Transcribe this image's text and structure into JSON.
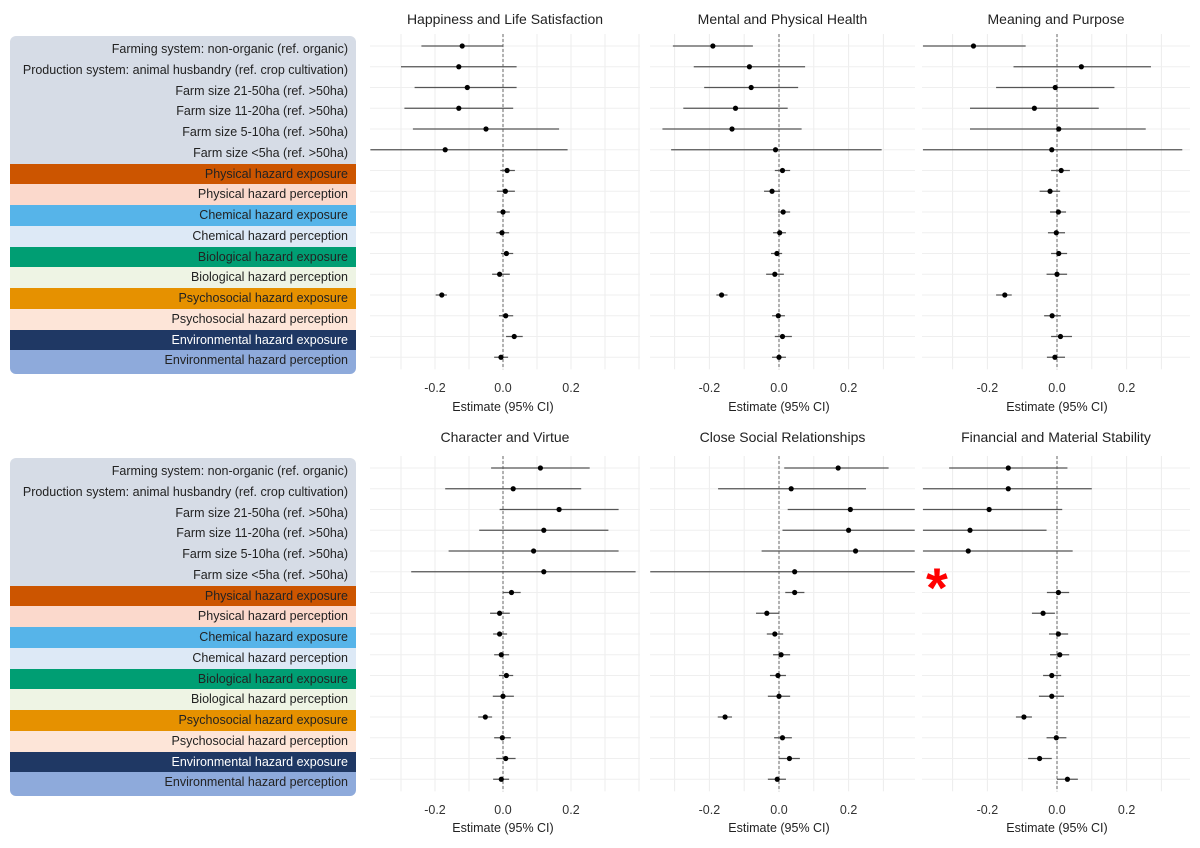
{
  "chart_data": {
    "type": "forest",
    "xlabel": "Estimate (95% CI)",
    "xticks": [
      -0.2,
      0.0,
      0.2
    ],
    "xtick_labels": [
      "-0.2",
      "0.0",
      "0.2"
    ],
    "reference_line": 0.0,
    "grid": true,
    "rows": [
      {
        "label": "Farming system: non-organic (ref. organic)",
        "color": "#d6dce6"
      },
      {
        "label": "Production system: animal husbandry (ref. crop cultivation)",
        "color": "#d6dce6"
      },
      {
        "label": "Farm size 21-50ha (ref. >50ha)",
        "color": "#d6dce6"
      },
      {
        "label": "Farm size 11-20ha (ref. >50ha)",
        "color": "#d6dce6"
      },
      {
        "label": "Farm size 5-10ha (ref. >50ha)",
        "color": "#d6dce6"
      },
      {
        "label": "Farm size <5ha (ref. >50ha)",
        "color": "#d6dce6"
      },
      {
        "label": "Physical hazard exposure",
        "color": "#cc5500"
      },
      {
        "label": "Physical hazard perception",
        "color": "#fbd9cc"
      },
      {
        "label": "Chemical hazard exposure",
        "color": "#56b4e9"
      },
      {
        "label": "Chemical hazard perception",
        "color": "#dde9f6"
      },
      {
        "label": "Biological hazard exposure",
        "color": "#009e73"
      },
      {
        "label": "Biological hazard perception",
        "color": "#eef4e4"
      },
      {
        "label": "Psychosocial hazard exposure",
        "color": "#e69100"
      },
      {
        "label": "Psychosocial hazard perception",
        "color": "#fde5d8"
      },
      {
        "label": "Environmental hazard exposure",
        "color": "#1f3864"
      },
      {
        "label": "Environmental hazard perception",
        "color": "#8eaadb"
      }
    ],
    "panels": [
      {
        "title": "Happiness and Life Satisfaction",
        "estimates": [
          -0.12,
          -0.13,
          -0.105,
          -0.13,
          -0.05,
          -0.17,
          0.012,
          0.007,
          0.0,
          -0.003,
          0.01,
          -0.01,
          -0.18,
          0.008,
          0.033,
          -0.006
        ],
        "ci_low": [
          -0.24,
          -0.3,
          -0.26,
          -0.29,
          -0.265,
          -0.39,
          -0.008,
          -0.018,
          -0.018,
          -0.02,
          -0.006,
          -0.032,
          -0.198,
          -0.012,
          0.009,
          -0.026
        ],
        "ci_high": [
          0.0,
          0.04,
          0.04,
          0.03,
          0.165,
          0.19,
          0.035,
          0.035,
          0.02,
          0.018,
          0.03,
          0.02,
          -0.165,
          0.03,
          0.058,
          0.015
        ]
      },
      {
        "title": "Mental and Physical Health",
        "estimates": [
          -0.19,
          -0.085,
          -0.08,
          -0.125,
          -0.135,
          -0.01,
          0.01,
          -0.02,
          0.012,
          0.002,
          -0.006,
          -0.012,
          -0.165,
          -0.002,
          0.01,
          0.0
        ],
        "ci_low": [
          -0.305,
          -0.245,
          -0.215,
          -0.275,
          -0.335,
          -0.31,
          -0.012,
          -0.043,
          -0.003,
          -0.017,
          -0.023,
          -0.037,
          -0.18,
          -0.02,
          -0.012,
          -0.02
        ],
        "ci_high": [
          -0.075,
          0.075,
          0.055,
          0.025,
          0.065,
          0.295,
          0.032,
          0.003,
          0.032,
          0.02,
          0.009,
          0.014,
          -0.148,
          0.017,
          0.037,
          0.02
        ]
      },
      {
        "title": "Meaning and Purpose",
        "estimates": [
          -0.24,
          0.07,
          -0.005,
          -0.065,
          0.005,
          -0.015,
          0.012,
          -0.02,
          0.004,
          -0.002,
          0.005,
          0.0,
          -0.15,
          -0.014,
          0.01,
          -0.006
        ],
        "ci_low": [
          -0.385,
          -0.125,
          -0.175,
          -0.25,
          -0.25,
          -0.385,
          -0.017,
          -0.05,
          -0.02,
          -0.026,
          -0.017,
          -0.03,
          -0.175,
          -0.037,
          -0.017,
          -0.029
        ],
        "ci_high": [
          -0.09,
          0.27,
          0.165,
          0.12,
          0.255,
          0.36,
          0.037,
          0.009,
          0.026,
          0.023,
          0.029,
          0.029,
          -0.13,
          0.011,
          0.043,
          0.023
        ]
      },
      {
        "title": "Character and Virtue",
        "estimates": [
          0.11,
          0.03,
          0.165,
          0.12,
          0.09,
          0.12,
          0.025,
          -0.01,
          -0.01,
          -0.005,
          0.01,
          0.0,
          -0.052,
          -0.002,
          0.008,
          -0.005
        ],
        "ci_low": [
          -0.035,
          -0.17,
          -0.01,
          -0.07,
          -0.16,
          -0.27,
          0.0,
          -0.038,
          -0.029,
          -0.026,
          -0.012,
          -0.03,
          -0.073,
          -0.026,
          -0.02,
          -0.029
        ],
        "ci_high": [
          0.255,
          0.23,
          0.34,
          0.31,
          0.34,
          0.39,
          0.052,
          0.02,
          0.012,
          0.018,
          0.03,
          0.032,
          -0.032,
          0.023,
          0.037,
          0.018
        ]
      },
      {
        "title": "Close Social Relationships",
        "estimates": [
          0.17,
          0.035,
          0.205,
          0.2,
          0.22,
          0.045,
          0.045,
          -0.035,
          -0.012,
          0.006,
          -0.003,
          0.0,
          -0.155,
          0.01,
          0.03,
          -0.005
        ],
        "ci_low": [
          0.015,
          -0.175,
          0.025,
          0.01,
          -0.05,
          -0.37,
          0.018,
          -0.066,
          -0.035,
          -0.017,
          -0.026,
          -0.032,
          -0.176,
          -0.014,
          0.0,
          -0.032
        ],
        "ci_high": [
          0.315,
          0.25,
          0.39,
          0.39,
          0.39,
          0.39,
          0.073,
          0.0,
          0.012,
          0.032,
          0.02,
          0.032,
          -0.135,
          0.037,
          0.06,
          0.02
        ]
      },
      {
        "title": "Financial and Material Stability",
        "estimates": [
          -0.14,
          -0.14,
          -0.195,
          -0.25,
          -0.255,
          null,
          0.004,
          -0.04,
          0.004,
          0.008,
          -0.015,
          -0.015,
          -0.095,
          -0.002,
          -0.05,
          0.03
        ],
        "ci_low": [
          -0.31,
          -0.385,
          -0.385,
          -0.385,
          -0.385,
          null,
          -0.029,
          -0.072,
          -0.023,
          -0.02,
          -0.04,
          -0.052,
          -0.118,
          -0.03,
          -0.083,
          0.0
        ],
        "ci_high": [
          0.03,
          0.1,
          0.015,
          -0.03,
          0.045,
          null,
          0.035,
          -0.006,
          0.032,
          0.035,
          0.012,
          0.02,
          -0.072,
          0.027,
          -0.015,
          0.06
        ],
        "annotation": "*"
      }
    ]
  }
}
